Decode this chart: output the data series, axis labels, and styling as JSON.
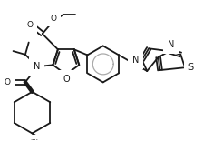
{
  "bg_color": "#ffffff",
  "line_color": "#1a1a1a",
  "line_width": 1.3,
  "figsize": [
    2.24,
    1.56
  ],
  "dpi": 100,
  "xlim": [
    0,
    224
  ],
  "ylim": [
    0,
    156
  ]
}
